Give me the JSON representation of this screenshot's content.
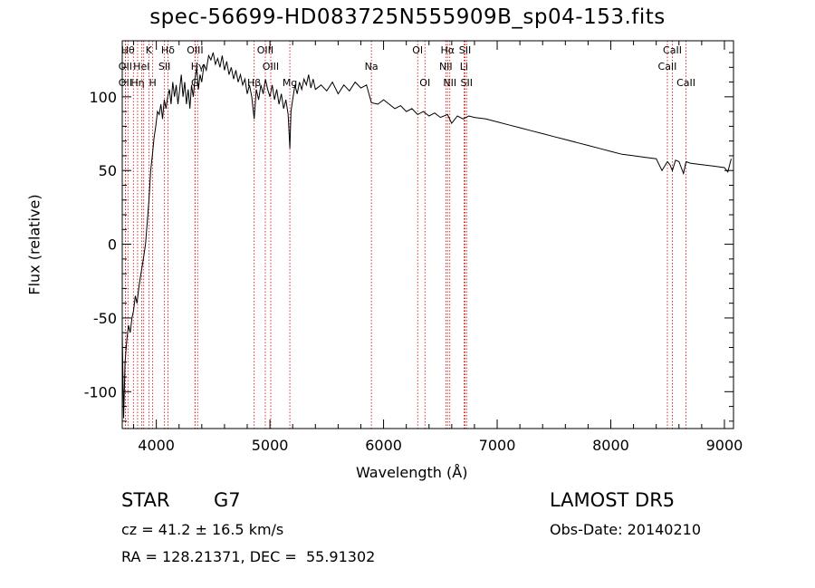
{
  "chart_data": {
    "type": "line",
    "title": "spec-56699-HD083725N555909B_sp04-153.fits",
    "xlabel": "Wavelength (Å)",
    "ylabel": "Flux (relative)",
    "xlim": [
      3700,
      9080
    ],
    "ylim": [
      -125,
      138
    ],
    "xticks": [
      4000,
      5000,
      6000,
      7000,
      8000,
      9000
    ],
    "yticks": [
      -100,
      -50,
      0,
      50,
      100
    ],
    "grid": false,
    "series": [
      {
        "x": [
          3700,
          3712,
          3725,
          3740,
          3755,
          3770,
          3785,
          3800,
          3815,
          3830,
          3845,
          3860,
          3875,
          3890,
          3905,
          3920,
          3935,
          3950,
          3965,
          3980,
          3995,
          4010,
          4025,
          4040,
          4055,
          4070,
          4085,
          4100,
          4115,
          4130,
          4145,
          4160,
          4175,
          4190,
          4205,
          4220,
          4235,
          4250,
          4265,
          4280,
          4295,
          4310,
          4325,
          4340,
          4355,
          4370,
          4385,
          4400,
          4420,
          4440,
          4460,
          4480,
          4500,
          4520,
          4540,
          4560,
          4580,
          4600,
          4620,
          4640,
          4660,
          4680,
          4700,
          4720,
          4740,
          4760,
          4780,
          4800,
          4820,
          4840,
          4861,
          4880,
          4900,
          4920,
          4940,
          4960,
          4980,
          5000,
          5020,
          5040,
          5060,
          5080,
          5100,
          5120,
          5140,
          5160,
          5175,
          5185,
          5200,
          5220,
          5240,
          5260,
          5280,
          5300,
          5320,
          5340,
          5360,
          5380,
          5400,
          5450,
          5500,
          5550,
          5600,
          5650,
          5700,
          5750,
          5800,
          5850,
          5893,
          5950,
          6000,
          6050,
          6100,
          6150,
          6200,
          6250,
          6300,
          6350,
          6400,
          6450,
          6500,
          6563,
          6600,
          6650,
          6700,
          6750,
          6800,
          6900,
          7000,
          7100,
          7200,
          7300,
          7400,
          7500,
          7600,
          7700,
          7800,
          7900,
          8000,
          8100,
          8200,
          8300,
          8400,
          8450,
          8498,
          8520,
          8542,
          8570,
          8600,
          8640,
          8662,
          8700,
          8800,
          8900,
          9000,
          9030,
          9060
        ],
        "y": [
          -60,
          -118,
          -80,
          -65,
          -55,
          -60,
          -50,
          -45,
          -35,
          -40,
          -30,
          -22,
          -15,
          -8,
          0,
          15,
          30,
          50,
          60,
          72,
          80,
          90,
          88,
          95,
          85,
          98,
          92,
          100,
          105,
          95,
          110,
          100,
          108,
          95,
          105,
          115,
          100,
          110,
          95,
          105,
          92,
          108,
          100,
          112,
          120,
          105,
          115,
          110,
          122,
          118,
          128,
          125,
          130,
          122,
          126,
          120,
          128,
          118,
          124,
          115,
          120,
          112,
          118,
          110,
          115,
          108,
          112,
          102,
          108,
          100,
          85,
          105,
          98,
          108,
          102,
          112,
          105,
          100,
          108,
          98,
          105,
          95,
          102,
          92,
          98,
          88,
          65,
          90,
          98,
          108,
          102,
          110,
          105,
          112,
          108,
          115,
          106,
          112,
          105,
          108,
          104,
          110,
          102,
          108,
          104,
          110,
          106,
          108,
          96,
          95,
          98,
          95,
          92,
          94,
          90,
          92,
          88,
          90,
          87,
          89,
          86,
          88,
          82,
          87,
          85,
          87,
          86,
          85,
          83,
          81,
          79,
          77,
          75,
          73,
          71,
          69,
          67,
          65,
          63,
          61,
          60,
          59,
          58,
          50,
          56,
          54,
          50,
          57,
          56,
          48,
          56,
          55,
          54,
          53,
          52,
          49,
          58
        ]
      }
    ],
    "lines": [
      {
        "x": 3750,
        "label": "Hθ",
        "row": 0
      },
      {
        "x": 3727,
        "label": "OII",
        "row": 1
      },
      {
        "x": 3727,
        "label": "OII",
        "row": 2
      },
      {
        "x": 3798,
        "label": "",
        "row": 0
      },
      {
        "x": 3835,
        "label": "Hη",
        "row": 2
      },
      {
        "x": 3870,
        "label": "HeI",
        "row": 1
      },
      {
        "x": 3889,
        "label": "",
        "row": 0
      },
      {
        "x": 3934,
        "label": "K",
        "row": 0
      },
      {
        "x": 3968,
        "label": "H",
        "row": 2
      },
      {
        "x": 4072,
        "label": "SII",
        "row": 1
      },
      {
        "x": 4102,
        "label": "Hδ",
        "row": 0
      },
      {
        "x": 4341,
        "label": "OIII",
        "row": 0
      },
      {
        "x": 4363,
        "label": "Hγ",
        "row": 1
      },
      {
        "x": 4340,
        "label": "G",
        "row": 2
      },
      {
        "x": 4861,
        "label": "Hβ",
        "row": 2
      },
      {
        "x": 4959,
        "label": "OIII",
        "row": 0
      },
      {
        "x": 5007,
        "label": "OIII",
        "row": 1
      },
      {
        "x": 5175,
        "label": "Mg",
        "row": 2
      },
      {
        "x": 5893,
        "label": "Na",
        "row": 1
      },
      {
        "x": 6300,
        "label": "OI",
        "row": 0
      },
      {
        "x": 6364,
        "label": "OI",
        "row": 2
      },
      {
        "x": 6548,
        "label": "NII",
        "row": 1
      },
      {
        "x": 6563,
        "label": "Hα",
        "row": 0
      },
      {
        "x": 6583,
        "label": "NII",
        "row": 2
      },
      {
        "x": 6708,
        "label": "Li",
        "row": 1
      },
      {
        "x": 6717,
        "label": "SII",
        "row": 0
      },
      {
        "x": 6731,
        "label": "SII",
        "row": 2
      },
      {
        "x": 8498,
        "label": "CaII",
        "row": 1
      },
      {
        "x": 8542,
        "label": "CaII",
        "row": 0
      },
      {
        "x": 8662,
        "label": "CaII",
        "row": 2
      }
    ],
    "line_color": "#cc0000"
  },
  "info": {
    "object_class": "STAR",
    "subclass": "G7",
    "survey": "LAMOST DR5",
    "cz": "cz = 41.2 ± 16.5 km/s",
    "obs_date": "Obs-Date: 20140210",
    "coords": "RA = 128.21371, DEC =  55.91302"
  }
}
